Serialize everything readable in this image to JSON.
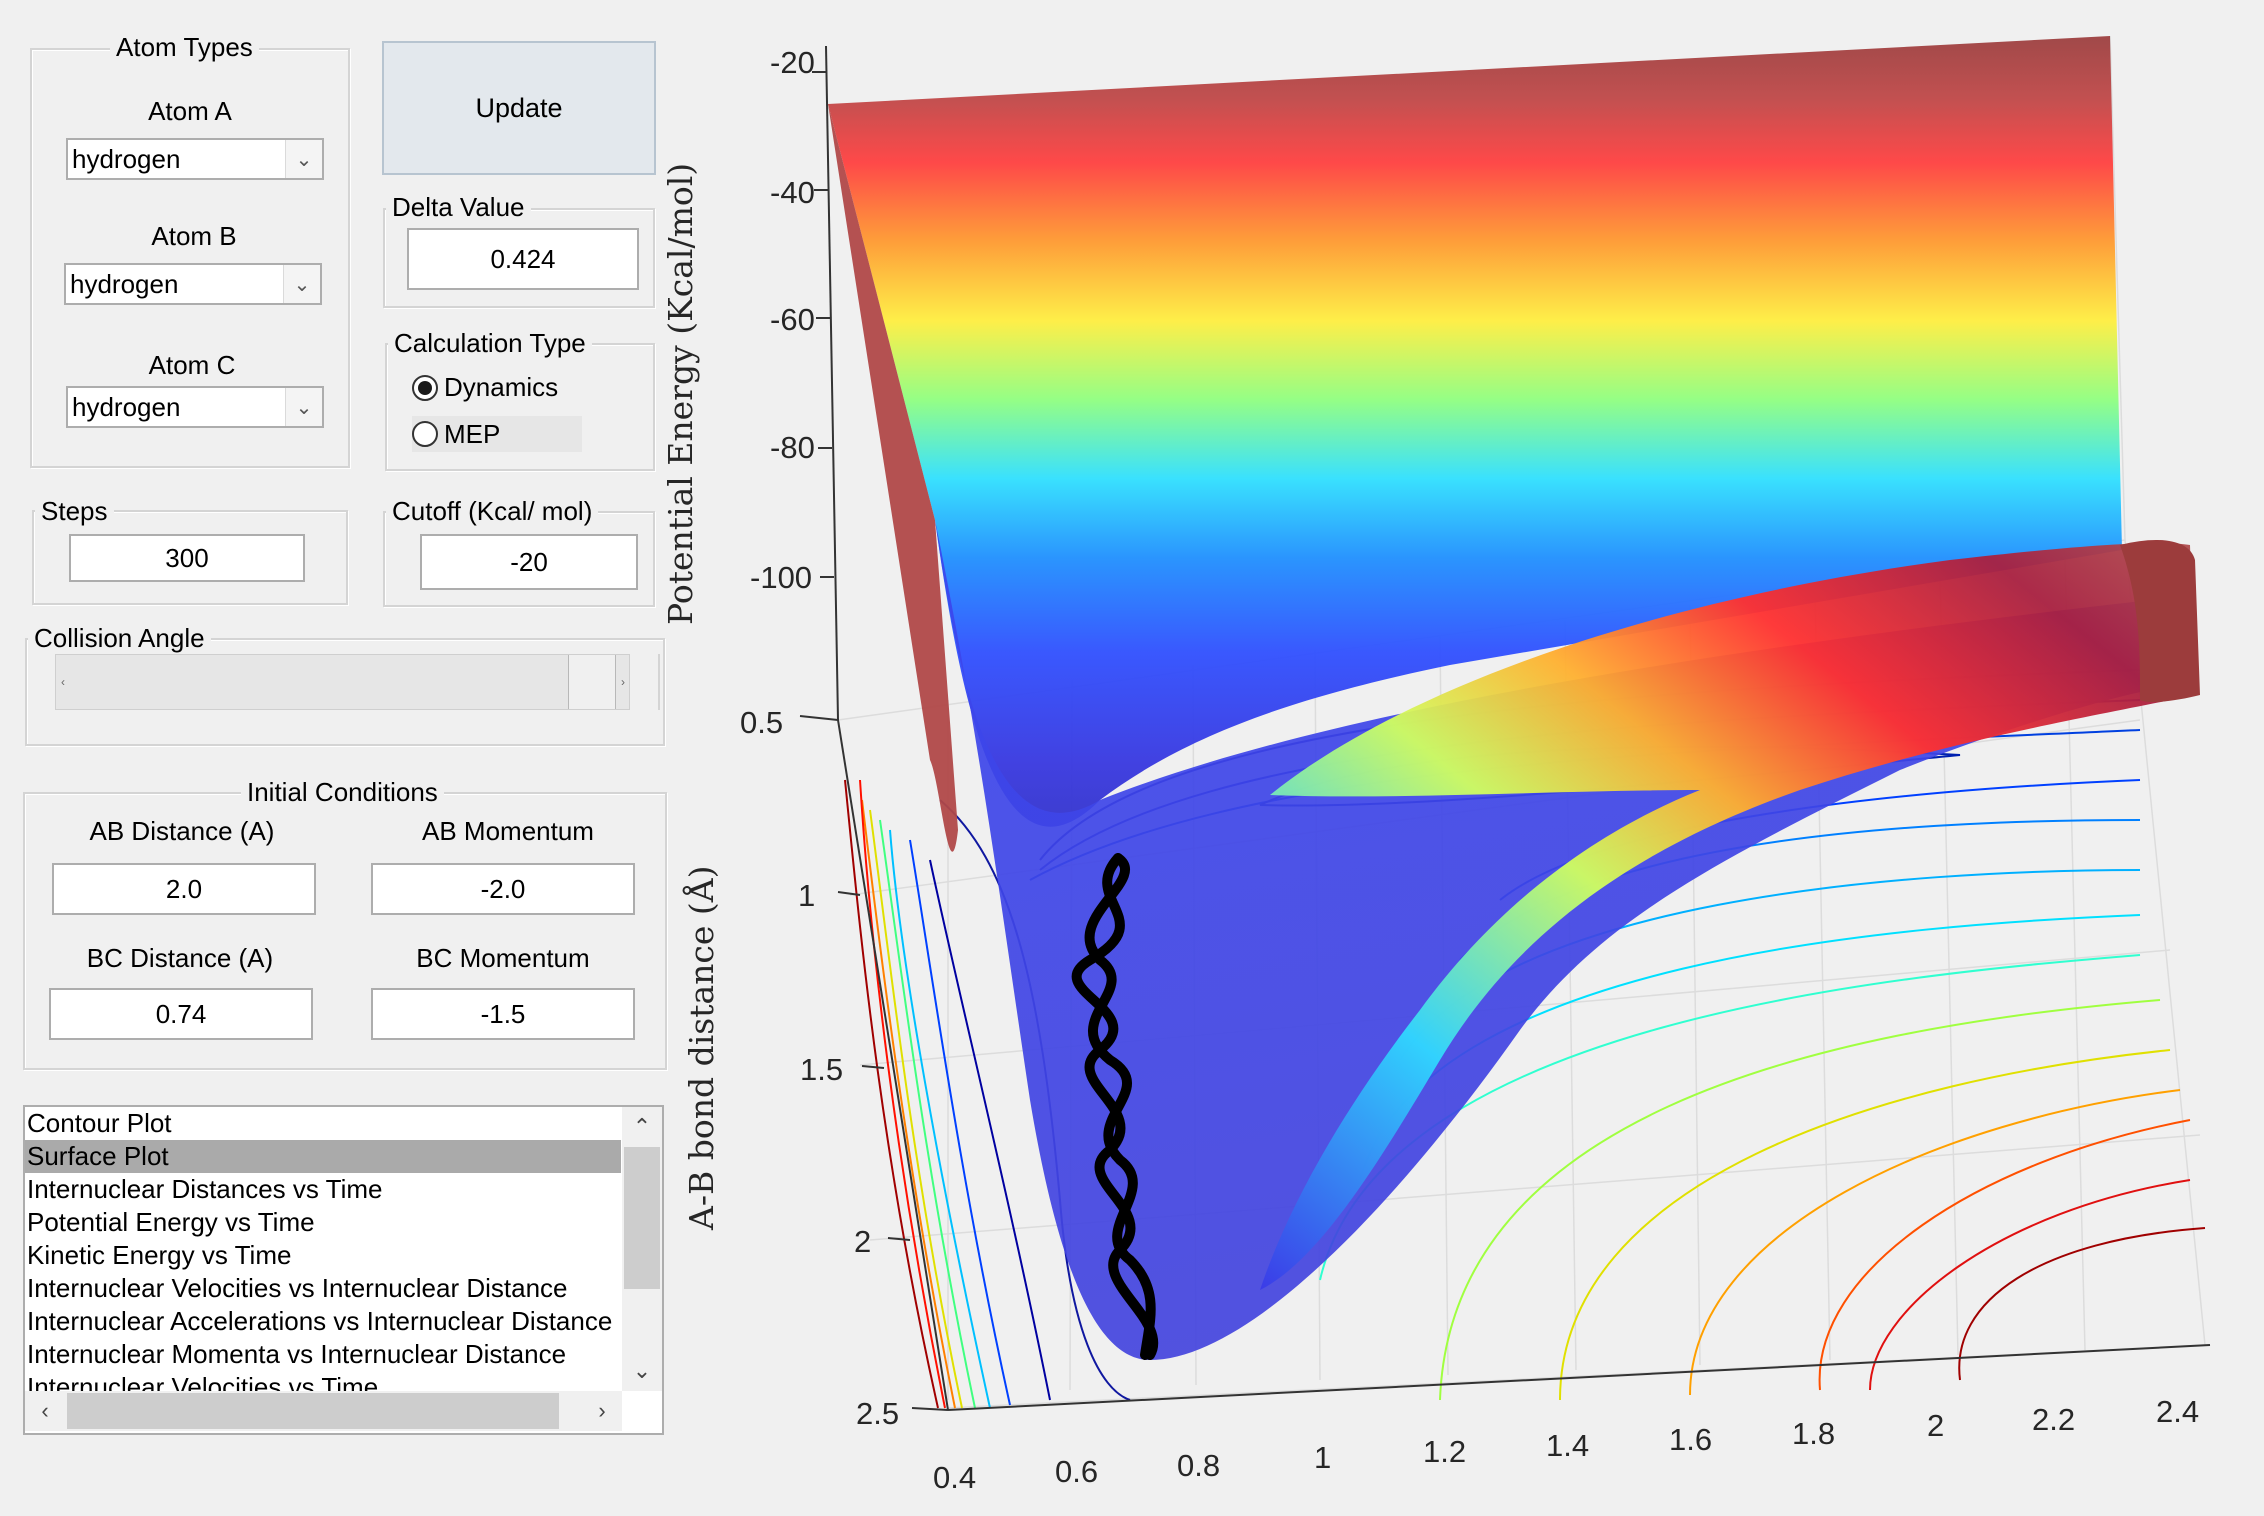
{
  "atom_types": {
    "legend": "Atom Types",
    "atom_a_label": "Atom A",
    "atom_a_value": "hydrogen",
    "atom_b_label": "Atom B",
    "atom_b_value": "hydrogen",
    "atom_c_label": "Atom C",
    "atom_c_value": "hydrogen"
  },
  "update_label": "Update",
  "delta": {
    "legend": "Delta Value",
    "value": "0.424"
  },
  "calc_type": {
    "legend": "Calculation Type",
    "options": [
      "Dynamics",
      "MEP"
    ],
    "selected": "Dynamics"
  },
  "steps": {
    "legend": "Steps",
    "value": "300"
  },
  "cutoff": {
    "legend": "Cutoff (Kcal/ mol)",
    "value": "-20"
  },
  "collision_angle": {
    "legend": "Collision Angle"
  },
  "initial": {
    "legend": "Initial Conditions",
    "ab_distance_label": "AB Distance (A)",
    "ab_distance_value": "2.0",
    "ab_momentum_label": "AB Momentum",
    "ab_momentum_value": "-2.0",
    "bc_distance_label": "BC Distance (A)",
    "bc_distance_value": "0.74",
    "bc_momentum_label": "BC Momentum",
    "bc_momentum_value": "-1.5"
  },
  "plot_list": {
    "items": [
      "Contour Plot",
      "Surface Plot",
      "Internuclear Distances vs Time",
      "Potential Energy vs Time",
      "Kinetic Energy vs Time",
      "Internuclear Velocities vs Internuclear Distance",
      "Internuclear Accelerations vs Internuclear Distance",
      "Internuclear Momenta vs Internuclear Distance",
      "Internuclear Velocities vs Time"
    ],
    "selected": "Surface Plot"
  },
  "chart_data": {
    "type": "surface",
    "zlabel": "Potential Energy (Kcal/mol)",
    "ylabel": "A-B bond distance (Å)",
    "xlabel": "",
    "z_ticks": [
      "-20",
      "-40",
      "-60",
      "-80",
      "-100"
    ],
    "y_ticks": [
      "0.5",
      "1",
      "1.5",
      "2",
      "2.5"
    ],
    "x_ticks": [
      "0.4",
      "0.6",
      "0.8",
      "1",
      "1.2",
      "1.4",
      "1.6",
      "1.8",
      "2",
      "2.2",
      "2.4"
    ],
    "zlim": [
      -100,
      -20
    ],
    "ylim": [
      0.5,
      2.5
    ],
    "xlim": [
      0.4,
      2.4
    ],
    "colormap": "jet",
    "trajectory_color": "#000000"
  }
}
